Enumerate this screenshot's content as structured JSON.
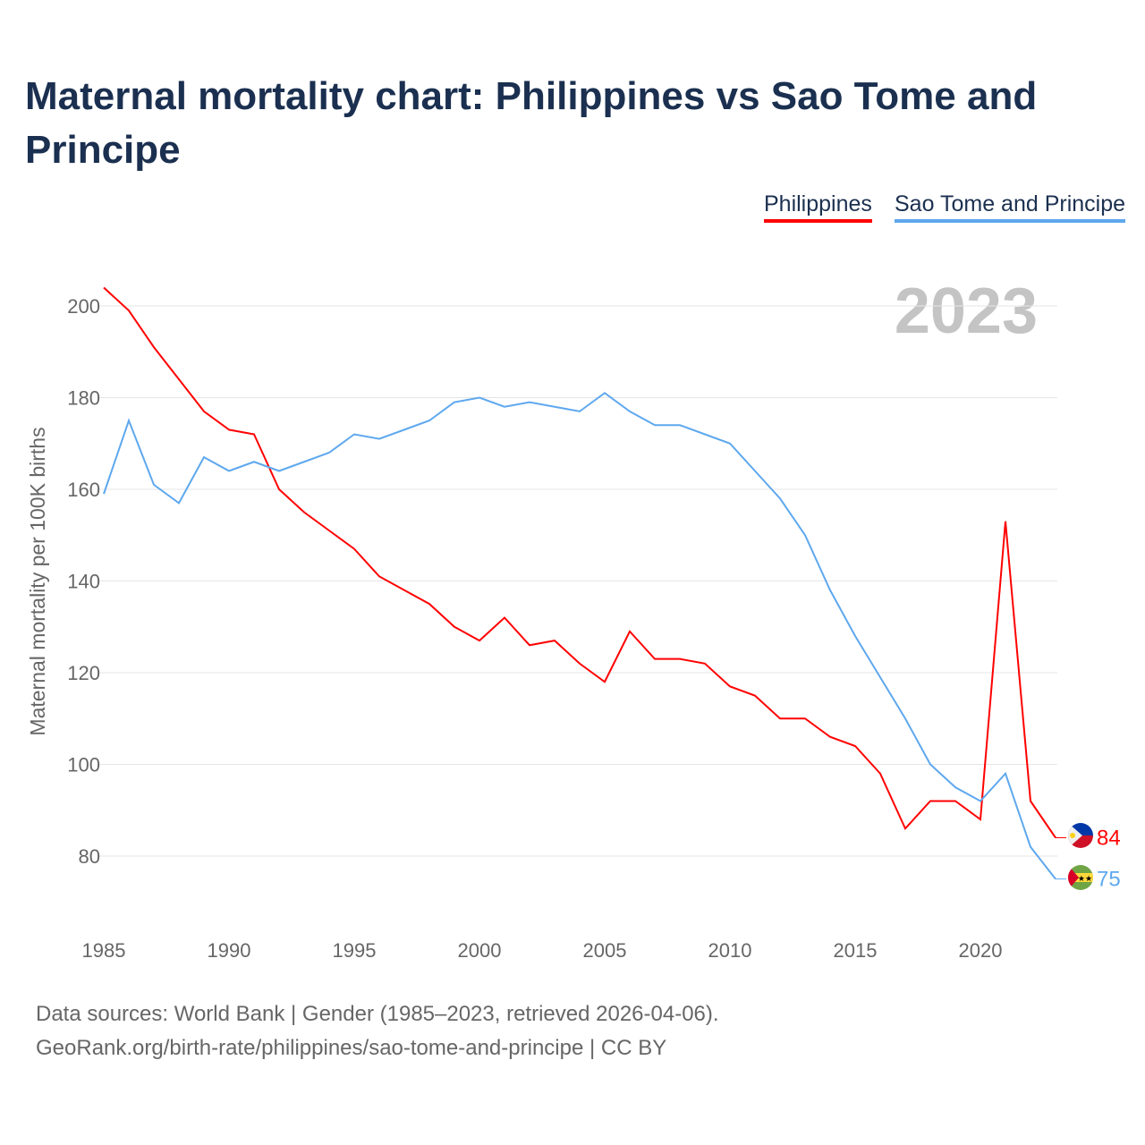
{
  "title": "Maternal mortality chart: Philippines vs Sao Tome and Principe",
  "footer": {
    "line1": "Data sources: World Bank | Gender (1985–2023, retrieved 2026-04-06).",
    "line2": "GeoRank.org/birth-rate/philippines/sao-tome-and-principe | CC BY"
  },
  "chart_data": {
    "type": "line",
    "title": "Maternal mortality chart: Philippines vs Sao Tome and Principe",
    "ylabel": "Maternal mortality per 100K births",
    "xlabel": "",
    "year_label": "2023",
    "xlim": [
      1985,
      2023
    ],
    "ylim": [
      68,
      204
    ],
    "xticks": [
      1985,
      1990,
      1995,
      2000,
      2005,
      2010,
      2015,
      2020
    ],
    "yticks": [
      80,
      100,
      120,
      140,
      160,
      180,
      200
    ],
    "grid": true,
    "legend_placement": "top-right",
    "x": [
      1985,
      1986,
      1987,
      1988,
      1989,
      1990,
      1991,
      1992,
      1993,
      1994,
      1995,
      1996,
      1997,
      1998,
      1999,
      2000,
      2001,
      2002,
      2003,
      2004,
      2005,
      2006,
      2007,
      2008,
      2009,
      2010,
      2011,
      2012,
      2013,
      2014,
      2015,
      2016,
      2017,
      2018,
      2019,
      2020,
      2021,
      2022,
      2023
    ],
    "series": [
      {
        "name": "Philippines",
        "color": "#ff0000",
        "end_label": "84",
        "values": [
          204,
          199,
          191,
          184,
          177,
          173,
          172,
          160,
          155,
          151,
          147,
          141,
          138,
          135,
          130,
          127,
          132,
          126,
          127,
          122,
          118,
          129,
          123,
          123,
          122,
          117,
          115,
          110,
          110,
          106,
          104,
          98,
          86,
          92,
          92,
          88,
          153,
          92,
          84
        ]
      },
      {
        "name": "Sao Tome and Principe",
        "color": "#5ea8ee",
        "end_label": "75",
        "values": [
          159,
          175,
          161,
          157,
          167,
          164,
          166,
          164,
          166,
          168,
          172,
          171,
          173,
          175,
          179,
          180,
          178,
          179,
          178,
          177,
          181,
          177,
          174,
          174,
          172,
          170,
          164,
          158,
          150,
          138,
          128,
          119,
          110,
          100,
          95,
          92,
          98,
          82,
          75
        ]
      }
    ]
  }
}
